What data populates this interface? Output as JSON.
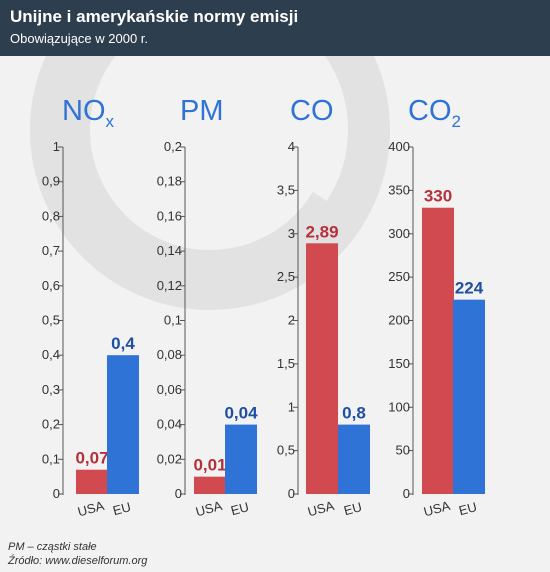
{
  "header": {
    "title": "Unijne i amerykańskie normy emisji",
    "subtitle": "Obowiązujące w 2000 r."
  },
  "footer": {
    "note": "PM – cząstki stałe",
    "source": "Źródło: www.dieselforum.org"
  },
  "colors": {
    "header_bg": "#2d3e4e",
    "usa": "#d04a4f",
    "eu": "#2f73d6",
    "usa_label": "#b5303a",
    "eu_label": "#1f4fa0"
  },
  "chart_data": [
    {
      "type": "bar",
      "title": "NOx",
      "title_main": "NO",
      "title_sub": "x",
      "categories": [
        "USA",
        "EU"
      ],
      "values": [
        0.07,
        0.4
      ],
      "value_labels": [
        "0,07",
        "0,4"
      ],
      "ylim": [
        0,
        1
      ],
      "yticks": [
        "0",
        "0,1",
        "0,2",
        "0,3",
        "0,4",
        "0,5",
        "0,6",
        "0,7",
        "0,8",
        "0,9",
        "1"
      ]
    },
    {
      "type": "bar",
      "title": "PM",
      "title_main": "PM",
      "title_sub": "",
      "categories": [
        "USA",
        "EU"
      ],
      "values": [
        0.01,
        0.04
      ],
      "value_labels": [
        "0,01",
        "0,04"
      ],
      "ylim": [
        0,
        0.2
      ],
      "yticks": [
        "0",
        "0,02",
        "0,04",
        "0,06",
        "0,08",
        "0,1",
        "0,12",
        "0,14",
        "0,16",
        "0,18",
        "0,2"
      ]
    },
    {
      "type": "bar",
      "title": "CO",
      "title_main": "CO",
      "title_sub": "",
      "categories": [
        "USA",
        "EU"
      ],
      "values": [
        2.89,
        0.8
      ],
      "value_labels": [
        "2,89",
        "0,8"
      ],
      "ylim": [
        0,
        4
      ],
      "yticks": [
        "0",
        "0,5",
        "1",
        "1,5",
        "2",
        "2,5",
        "3",
        "3,5",
        "4"
      ]
    },
    {
      "type": "bar",
      "title": "CO2",
      "title_main": "CO",
      "title_sub": "2",
      "categories": [
        "USA",
        "EU"
      ],
      "values": [
        330,
        224
      ],
      "value_labels": [
        "330",
        "224"
      ],
      "ylim": [
        0,
        400
      ],
      "yticks": [
        "0",
        "50",
        "100",
        "150",
        "200",
        "250",
        "300",
        "350",
        "400"
      ]
    }
  ]
}
